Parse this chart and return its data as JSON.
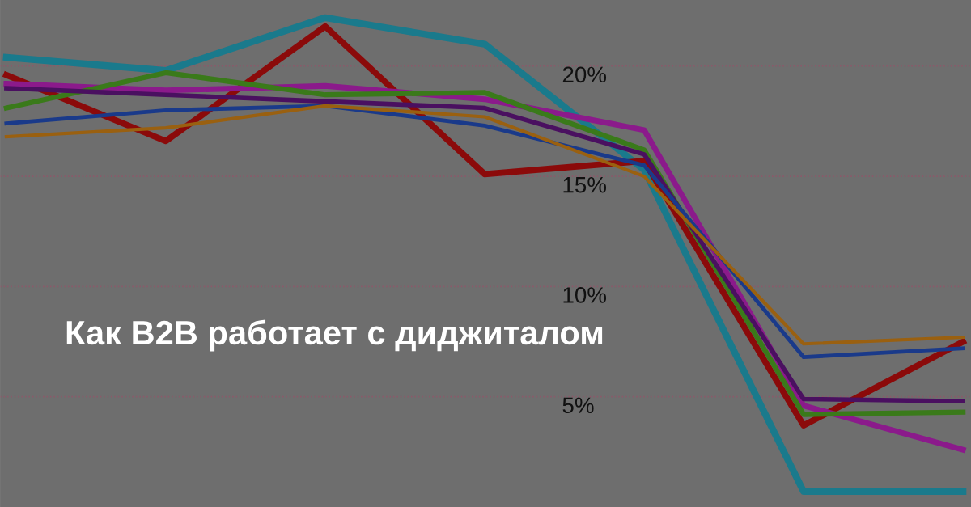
{
  "chart_data": {
    "type": "line",
    "title": "Как B2B работает с диджиталом",
    "categories": [
      null,
      null,
      null,
      null,
      null,
      null,
      null
    ],
    "series": [
      {
        "color": "#1a7a8c",
        "values": [
          20.4,
          19.8,
          22.2,
          21.0,
          15.3,
          0.7,
          0.7
        ]
      },
      {
        "color": "#8b0a0a",
        "values": [
          19.6,
          16.6,
          21.8,
          15.1,
          15.7,
          3.7,
          7.5
        ]
      },
      {
        "color": "#8b1a8b",
        "values": [
          19.2,
          18.9,
          19.1,
          18.5,
          17.1,
          4.6,
          2.6
        ]
      },
      {
        "color": "#3a7a1a",
        "values": [
          18.1,
          19.7,
          18.7,
          18.8,
          16.2,
          4.2,
          4.3
        ]
      },
      {
        "color": "#4a1060",
        "values": [
          19.0,
          18.7,
          18.4,
          18.1,
          16.0,
          4.9,
          4.8
        ]
      },
      {
        "color": "#1a3a8a",
        "values": [
          17.4,
          18.0,
          18.2,
          17.3,
          15.5,
          6.8,
          7.2
        ]
      },
      {
        "color": "#9a6010",
        "values": [
          16.8,
          17.2,
          18.2,
          17.7,
          15.0,
          7.4,
          7.7
        ]
      }
    ],
    "ylim": [
      0,
      23
    ],
    "yticks": [
      {
        "value": 5,
        "label": "5%"
      },
      {
        "value": 10,
        "label": "10%"
      },
      {
        "value": 15,
        "label": "15%"
      },
      {
        "value": 20,
        "label": "20%"
      }
    ],
    "grid": "y",
    "legend": false,
    "marker": "none",
    "line_style": "solid",
    "tick_labels": "y"
  }
}
